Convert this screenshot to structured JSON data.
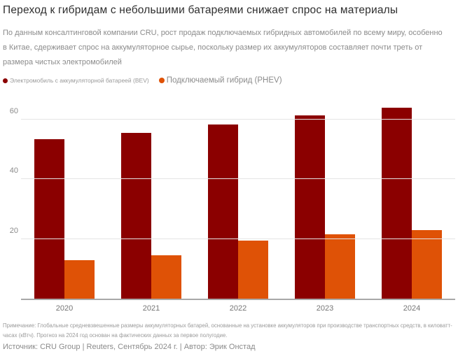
{
  "header": {
    "title": "Переход к гибридам с небольшими батареями снижает спрос на материалы",
    "subtitle": "По данным консалтинговой компании CRU, рост продаж подключаемых гибридных автомобилей по всему миру, особенно в Китае, сдерживает спрос на аккумуляторное сырье, поскольку размер их аккумуляторов составляет почти треть от размера чистых электромобилей"
  },
  "legend": [
    {
      "label": "Электромобиль с аккумуляторной батареей (BEV)",
      "color": "#8B0000"
    },
    {
      "label": "Подключаемый гибрид (PHEV)",
      "color": "#DF5206"
    }
  ],
  "chart_data": {
    "type": "bar",
    "categories": [
      "2020",
      "2021",
      "2022",
      "2023",
      "2024"
    ],
    "series": [
      {
        "name": "Электромобиль с аккумуляторной батареей (BEV)",
        "color": "#8B0000",
        "values": [
          53.5,
          55.5,
          58.5,
          61.5,
          64
        ]
      },
      {
        "name": "Подключаемый гибрид (PHEV)",
        "color": "#DF5206",
        "values": [
          13,
          14.5,
          19.5,
          21.5,
          23
        ]
      }
    ],
    "title": "Переход к гибридам с небольшими батареями снижает спрос на материалы",
    "xlabel": "",
    "ylabel": "",
    "unit": "кВтч",
    "yticks": [
      20,
      40,
      60
    ],
    "ylim": [
      0,
      68
    ],
    "grid": true,
    "legend_position": "top"
  },
  "footer": {
    "note": "Примечание: Глобальные средневзвешенные размеры аккумуляторных батарей, основанные на установке аккумуляторов при производстве транспортных средств, в киловатт-часах (кВтч). Прогноз на 2024 год основан на фактических данных за первое полугодие.",
    "source": "Источник: CRU Group | Reuters, Сентябрь 2024 г. | Автор: Эрик Онстад"
  }
}
